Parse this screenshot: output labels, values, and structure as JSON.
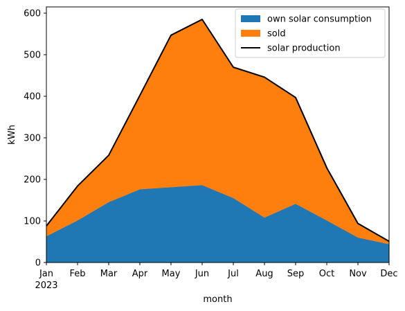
{
  "chart_data": {
    "type": "area",
    "xlabel": "month",
    "ylabel": "kWh",
    "year_label": "2023",
    "categories": [
      "Jan",
      "Feb",
      "Mar",
      "Apr",
      "May",
      "Jun",
      "Jul",
      "Aug",
      "Sep",
      "Oct",
      "Nov",
      "Dec"
    ],
    "ylim": [
      0,
      615
    ],
    "yticks": [
      0,
      100,
      200,
      300,
      400,
      500,
      600
    ],
    "grid": false,
    "legend_position": "top-right",
    "series": [
      {
        "name": "own solar consumption",
        "kind": "stacked-area",
        "color": "#1f77b4",
        "values": [
          63,
          101,
          145,
          176,
          181,
          186,
          155,
          108,
          141,
          101,
          60,
          44
        ]
      },
      {
        "name": "sold",
        "kind": "stacked-area",
        "color": "#ff7f0e",
        "values": [
          25,
          83,
          113,
          226,
          366,
          399,
          315,
          338,
          256,
          127,
          34,
          7
        ]
      },
      {
        "name": "solar production",
        "kind": "line",
        "color": "#000000",
        "values": [
          88,
          184,
          258,
          402,
          547,
          585,
          470,
          446,
          397,
          228,
          94,
          51
        ]
      }
    ]
  }
}
